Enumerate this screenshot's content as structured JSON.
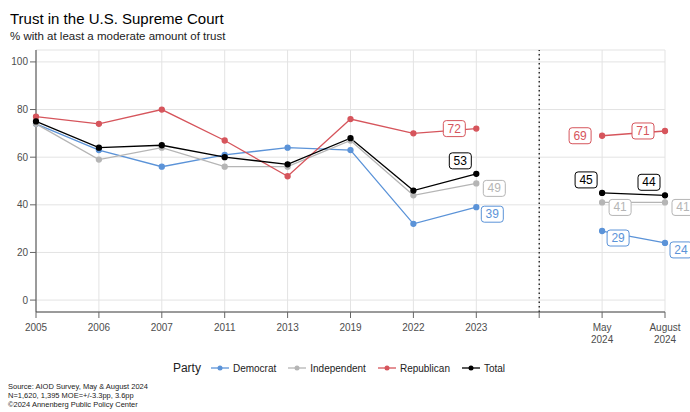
{
  "chart_data": {
    "type": "line",
    "title": "Trust in the U.S. Supreme Court",
    "subtitle": "% with at least a moderate amount of trust",
    "categories": [
      "2005",
      "2006",
      "2007",
      "2011",
      "2013",
      "2019",
      "2022",
      "2023",
      null,
      "May 2024",
      "August 2024"
    ],
    "series": [
      {
        "name": "Democrat",
        "color": "#5b93d8",
        "values": [
          74,
          63,
          56,
          61,
          64,
          63,
          32,
          39,
          null,
          29,
          24
        ],
        "value_labels": [
          null,
          null,
          null,
          null,
          null,
          null,
          null,
          "39",
          null,
          "29",
          "24"
        ]
      },
      {
        "name": "Independent",
        "color": "#b5b5b5",
        "values": [
          74,
          59,
          64,
          56,
          56,
          67,
          44,
          49,
          null,
          41,
          41
        ],
        "value_labels": [
          null,
          null,
          null,
          null,
          null,
          null,
          null,
          "49",
          null,
          "41",
          "41"
        ]
      },
      {
        "name": "Republican",
        "color": "#d6555c",
        "values": [
          77,
          74,
          80,
          67,
          52,
          76,
          70,
          72,
          null,
          69,
          71
        ],
        "value_labels": [
          null,
          null,
          null,
          null,
          null,
          null,
          null,
          "72",
          null,
          "69",
          "71"
        ]
      },
      {
        "name": "Total",
        "color": "#000000",
        "values": [
          75,
          64,
          65,
          60,
          57,
          68,
          46,
          53,
          null,
          45,
          44
        ],
        "value_labels": [
          null,
          null,
          null,
          null,
          null,
          null,
          null,
          "53",
          null,
          "45",
          "44"
        ]
      }
    ],
    "ylim": [
      -5,
      105
    ],
    "yticks": [
      0,
      20,
      40,
      60,
      80,
      100
    ],
    "grid": true,
    "legend": "bottom",
    "legend_title": "Party",
    "data_labels": true,
    "marker": "circle",
    "annotations": [
      "Source: AIOD Survey, May & August 2024",
      "N=1,620, 1,395 MOE=+/-3.3pp, 3.6pp",
      "©2024 Annenberg Public Policy Center"
    ]
  }
}
